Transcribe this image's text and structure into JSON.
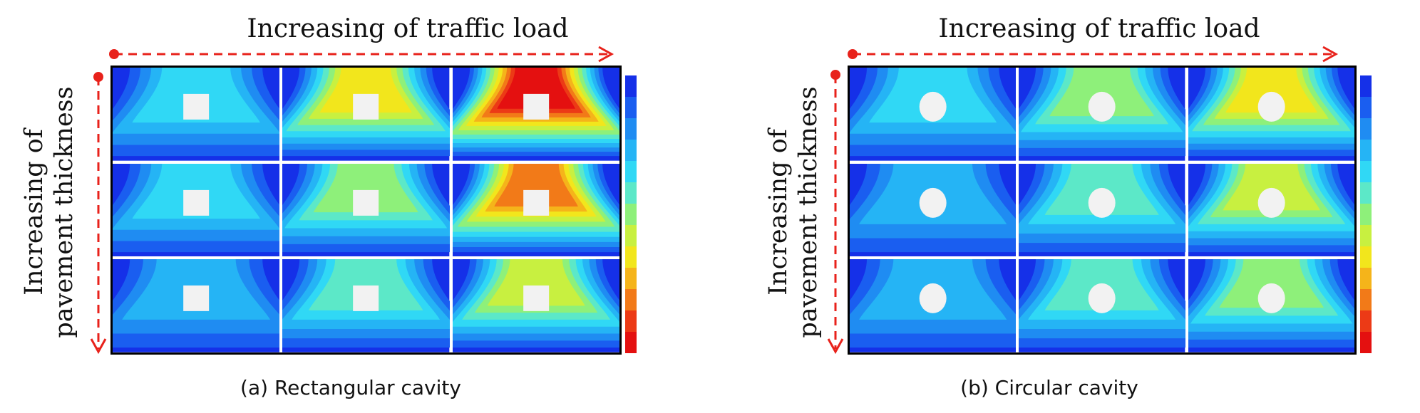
{
  "panels": [
    {
      "id": "a",
      "caption": "(a) Rectangular cavity",
      "cavity_shape": "rectangle",
      "x_axis_label": "Increasing of traffic load",
      "y_axis_label_line1": "Increasing of",
      "y_axis_label_line2": "pavement thickness",
      "stress_intensity": [
        [
          0.35,
          0.65,
          1.0
        ],
        [
          0.3,
          0.5,
          0.8
        ],
        [
          0.25,
          0.4,
          0.55
        ]
      ]
    },
    {
      "id": "b",
      "caption": "(b) Circular cavity",
      "cavity_shape": "circle",
      "x_axis_label": "Increasing of traffic load",
      "y_axis_label_line1": "Increasing of",
      "y_axis_label_line2": "pavement thickness",
      "stress_intensity": [
        [
          0.3,
          0.5,
          0.65
        ],
        [
          0.28,
          0.42,
          0.55
        ],
        [
          0.25,
          0.38,
          0.48
        ]
      ]
    }
  ],
  "colors": {
    "arrow": "#e8221b",
    "background_blue": "#1530e8",
    "contour_levels": [
      "#1530e8",
      "#1a5ef0",
      "#1f8cf2",
      "#25b4f5",
      "#30d8f5",
      "#5ce8c8",
      "#8ef07a",
      "#c8f040",
      "#f2e61c",
      "#f5b41a",
      "#f27a18",
      "#ec3a16",
      "#e41010"
    ],
    "cavity": "#f2f2f2"
  }
}
